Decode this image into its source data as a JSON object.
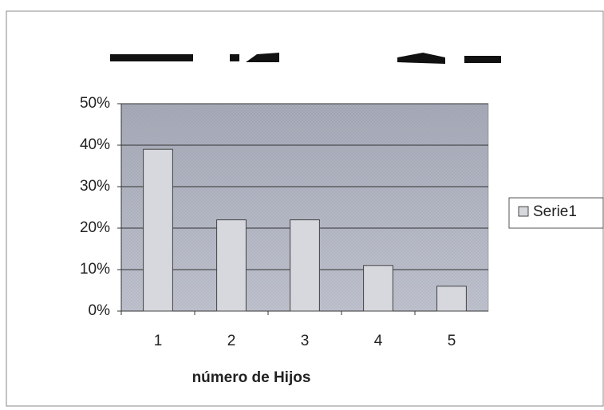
{
  "chart_data": {
    "type": "bar",
    "x_label": "número de Hijos",
    "categories": [
      "1",
      "2",
      "3",
      "4",
      "5"
    ],
    "series": [
      {
        "name": "Serie1",
        "color": "#d6d8de",
        "values": [
          39,
          22,
          22,
          11,
          6
        ]
      }
    ],
    "ylim": [
      0,
      50
    ],
    "yticks": [
      {
        "value": 0,
        "label": "0%"
      },
      {
        "value": 10,
        "label": "10%"
      },
      {
        "value": 20,
        "label": "20%"
      },
      {
        "value": 30,
        "label": "30%"
      },
      {
        "value": 40,
        "label": "40%"
      },
      {
        "value": 50,
        "label": "50%"
      }
    ],
    "grid": true,
    "legend": "right"
  }
}
